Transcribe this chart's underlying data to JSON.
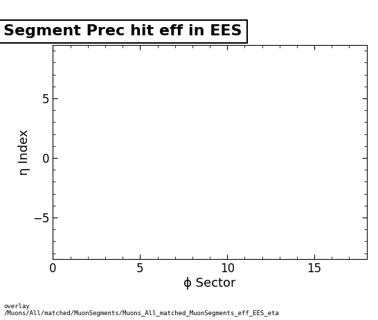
{
  "title": "Segment Prec hit eff in EES",
  "xlabel": "ϕ Sector",
  "ylabel": "η Index",
  "xlim": [
    0,
    18
  ],
  "ylim": [
    -8.5,
    9.5
  ],
  "xticks": [
    0,
    5,
    10,
    15
  ],
  "yticks": [
    -5,
    0,
    5
  ],
  "background_color": "#ffffff",
  "plot_bg_color": "#ffffff",
  "title_fontsize": 16,
  "label_fontsize": 13,
  "tick_fontsize": 12,
  "footer_text": "overlay\n/Muons/All/matched/MuonSegments/Muons_All_matched_MuonSegments_eff_EES_eta",
  "footer_fontsize": 6.5
}
